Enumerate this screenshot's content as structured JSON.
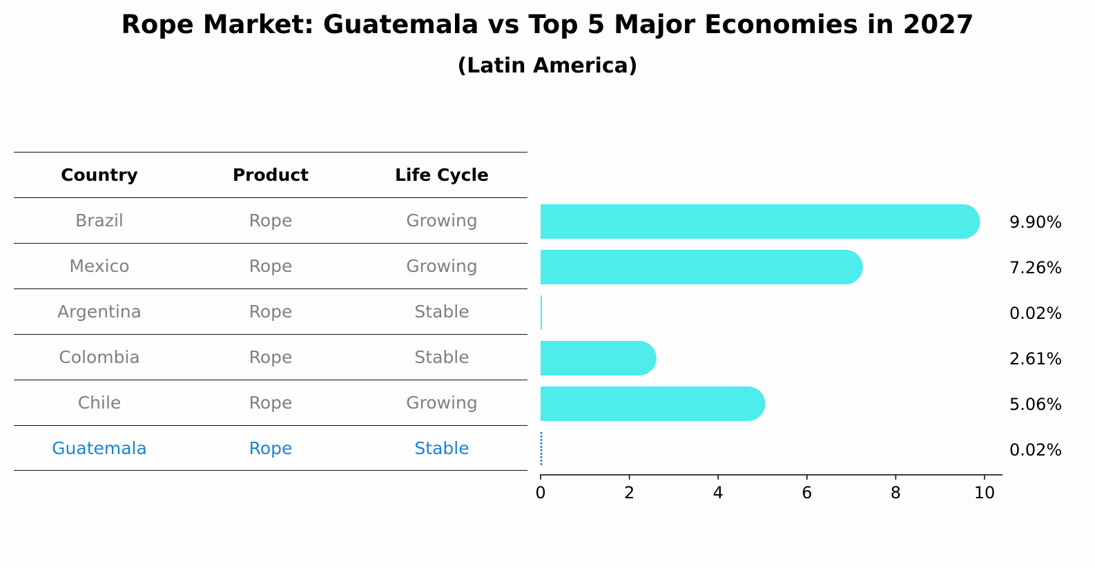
{
  "title": "Rope Market: Guatemala vs Top 5 Major Economies in 2027",
  "subtitle": "(Latin America)",
  "table": {
    "headers": [
      "Country",
      "Product",
      "Life Cycle"
    ],
    "rows": [
      [
        "Brazil",
        "Rope",
        "Growing"
      ],
      [
        "Mexico",
        "Rope",
        "Growing"
      ],
      [
        "Argentina",
        "Rope",
        "Stable"
      ],
      [
        "Colombia",
        "Rope",
        "Stable"
      ],
      [
        "Chile",
        "Rope",
        "Growing"
      ],
      [
        "Guatemala",
        "Rope",
        "Stable"
      ]
    ],
    "highlight_row": "Guatemala"
  },
  "colors": {
    "bar": "#4eecea",
    "highlight": "#1a85d6",
    "muted_text": "#808080"
  },
  "chart_data": {
    "type": "bar",
    "orientation": "horizontal",
    "categories": [
      "Brazil",
      "Mexico",
      "Argentina",
      "Colombia",
      "Chile",
      "Guatemala"
    ],
    "values": [
      9.9,
      7.26,
      0.02,
      2.61,
      5.06,
      0.02
    ],
    "value_labels": [
      "9.90%",
      "7.26%",
      "0.02%",
      "2.61%",
      "5.06%",
      "0.02%"
    ],
    "xlim": [
      0,
      10.4
    ],
    "xticks": [
      0,
      2,
      4,
      6,
      8,
      10
    ],
    "grid": false
  }
}
